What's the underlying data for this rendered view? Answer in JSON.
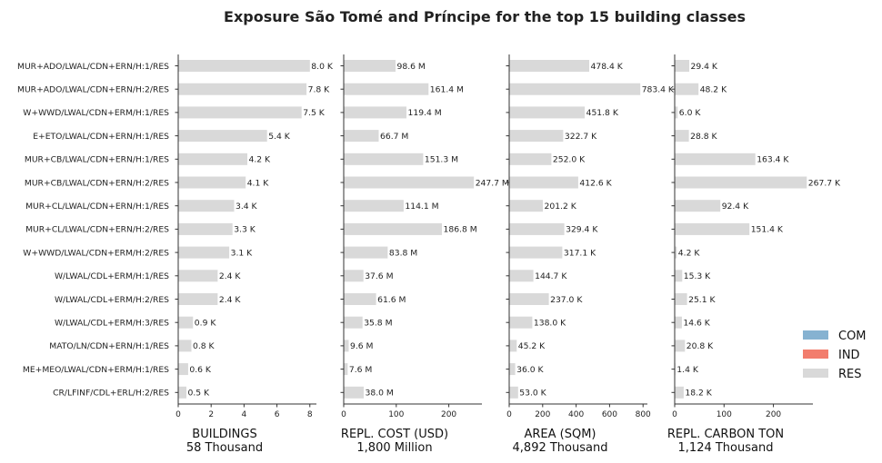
{
  "chart_data": {
    "type": "bar",
    "title": "Exposure São Tomé and Príncipe for the top 15 building classes",
    "categories": [
      "MUR+ADO/LWAL/CDN+ERN/H:1/RES",
      "MUR+ADO/LWAL/CDN+ERN/H:2/RES",
      "W+WWD/LWAL/CDN+ERM/H:1/RES",
      "E+ETO/LWAL/CDN+ERN/H:1/RES",
      "MUR+CB/LWAL/CDN+ERN/H:1/RES",
      "MUR+CB/LWAL/CDN+ERN/H:2/RES",
      "MUR+CL/LWAL/CDN+ERN/H:1/RES",
      "MUR+CL/LWAL/CDN+ERN/H:2/RES",
      "W+WWD/LWAL/CDN+ERM/H:2/RES",
      "W/LWAL/CDL+ERM/H:1/RES",
      "W/LWAL/CDL+ERM/H:2/RES",
      "W/LWAL/CDL+ERM/H:3/RES",
      "MATO/LN/CDN+ERN/H:1/RES",
      "ME+MEO/LWAL/CDN+ERM/H:1/RES",
      "CR/LFINF/CDL+ERL/H:2/RES"
    ],
    "panels": [
      {
        "xlabel": "BUILDINGS",
        "total": "58 Thousand",
        "xlim": [
          0,
          8.4
        ],
        "ticks": [
          0,
          2,
          4,
          6,
          8
        ],
        "tick_labels": [
          "0",
          "2",
          "4",
          "6",
          "8"
        ],
        "values": [
          8.0,
          7.8,
          7.5,
          5.4,
          4.2,
          4.1,
          3.4,
          3.3,
          3.1,
          2.4,
          2.4,
          0.9,
          0.8,
          0.6,
          0.5
        ],
        "labels": [
          "8.0 K",
          "7.8 K",
          "7.5 K",
          "5.4 K",
          "4.2 K",
          "4.1 K",
          "3.4 K",
          "3.3 K",
          "3.1 K",
          "2.4 K",
          "2.4 K",
          "0.9 K",
          "0.8 K",
          "0.6 K",
          "0.5 K"
        ]
      },
      {
        "xlabel": "REPL. COST (USD)",
        "total": "1,800 Million",
        "xlim": [
          0,
          263
        ],
        "ticks": [
          0,
          100,
          200
        ],
        "tick_labels": [
          "0",
          "100",
          "200"
        ],
        "values": [
          98.6,
          161.4,
          119.4,
          66.7,
          151.3,
          247.7,
          114.1,
          186.8,
          83.8,
          37.6,
          61.6,
          35.8,
          9.6,
          7.6,
          38.0
        ],
        "labels": [
          "98.6 M",
          "161.4 M",
          "119.4 M",
          "66.7 M",
          "151.3 M",
          "247.7 M",
          "114.1 M",
          "186.8 M",
          "83.8 M",
          "37.6 M",
          "61.6 M",
          "35.8 M",
          "9.6 M",
          "7.6 M",
          "38.0 M"
        ]
      },
      {
        "xlabel": "AREA (SQM)",
        "total": "4,892 Thousand",
        "xlim": [
          0,
          826
        ],
        "ticks": [
          0,
          200,
          400,
          600,
          800
        ],
        "tick_labels": [
          "0",
          "200",
          "400",
          "600",
          "800"
        ],
        "values": [
          478.4,
          783.4,
          451.8,
          322.7,
          252.0,
          412.6,
          201.2,
          329.4,
          317.1,
          144.7,
          237.0,
          138.0,
          45.2,
          36.0,
          53.0
        ],
        "labels": [
          "478.4 K",
          "783.4 K",
          "451.8 K",
          "322.7 K",
          "252.0 K",
          "412.6 K",
          "201.2 K",
          "329.4 K",
          "317.1 K",
          "144.7 K",
          "237.0 K",
          "138.0 K",
          "45.2 K",
          "36.0 K",
          "53.0 K"
        ]
      },
      {
        "xlabel": "REPL. CARBON TON",
        "total": "1,124 Thousand",
        "xlim": [
          0,
          280
        ],
        "ticks": [
          0,
          100,
          200
        ],
        "tick_labels": [
          "0",
          "100",
          "200"
        ],
        "values": [
          29.4,
          48.2,
          6.0,
          28.8,
          163.4,
          267.7,
          92.4,
          151.4,
          4.2,
          15.3,
          25.1,
          14.6,
          20.8,
          1.4,
          18.2
        ],
        "labels": [
          "29.4 K",
          "48.2 K",
          "6.0 K",
          "28.8 K",
          "163.4 K",
          "267.7 K",
          "92.4 K",
          "151.4 K",
          "4.2 K",
          "15.3 K",
          "25.1 K",
          "14.6 K",
          "20.8 K",
          "1.4 K",
          "18.2 K"
        ]
      }
    ],
    "legend": [
      {
        "label": "COM",
        "color": "#86b2d1"
      },
      {
        "label": "IND",
        "color": "#f27d6d"
      },
      {
        "label": "RES",
        "color": "#d9d9d9"
      }
    ],
    "legend_position": "right",
    "bar_color": "#d9d9d9",
    "grid": false
  }
}
